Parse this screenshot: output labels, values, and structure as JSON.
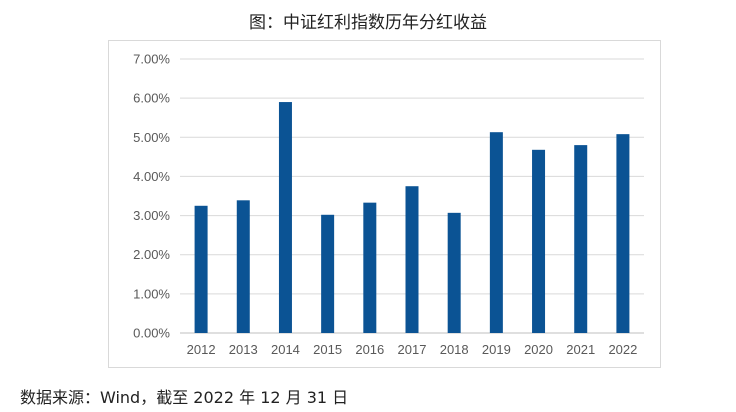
{
  "title": "图：中证红利指数历年分红收益",
  "source": "数据来源：Wind，截至 2022 年 12 月 31 日",
  "colors": {
    "bar": "#0b5394",
    "grid": "#d9d9d9",
    "axis": "#bfbfbf"
  },
  "chart_data": {
    "type": "bar",
    "title": "图：中证红利指数历年分红收益",
    "categories": [
      "2012",
      "2013",
      "2014",
      "2015",
      "2016",
      "2017",
      "2018",
      "2019",
      "2020",
      "2021",
      "2022"
    ],
    "values": [
      3.25,
      3.39,
      5.9,
      3.02,
      3.33,
      3.75,
      3.07,
      5.13,
      4.68,
      4.8,
      5.08
    ],
    "value_unit": "%",
    "ylim": [
      0,
      7
    ],
    "yticks": [
      "0.00%",
      "1.00%",
      "2.00%",
      "3.00%",
      "4.00%",
      "5.00%",
      "6.00%",
      "7.00%"
    ],
    "grid": true,
    "legend": "none",
    "xlabel": "",
    "ylabel": ""
  }
}
